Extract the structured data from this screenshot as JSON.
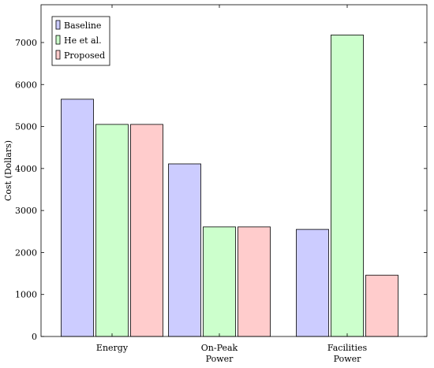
{
  "chart_data": {
    "type": "bar",
    "title": "",
    "xlabel": "",
    "ylabel": "Cost (Dollars)",
    "categories": [
      [
        "Energy"
      ],
      [
        "On-Peak",
        "Power"
      ],
      [
        "Facilities",
        "Power"
      ]
    ],
    "series": [
      {
        "name": "Baseline",
        "color": "#ccccff",
        "values": [
          5650,
          4110,
          2550
        ]
      },
      {
        "name": "He et al.",
        "color": "#ccffcc",
        "values": [
          5050,
          2610,
          7180
        ]
      },
      {
        "name": "Proposed",
        "color": "#ffcccc",
        "values": [
          5050,
          2610,
          1460
        ]
      }
    ],
    "yticks": [
      0,
      1000,
      2000,
      3000,
      4000,
      5000,
      6000,
      7000
    ],
    "ylim": [
      0,
      7900
    ],
    "grid": false,
    "legend_position": "top-left"
  }
}
